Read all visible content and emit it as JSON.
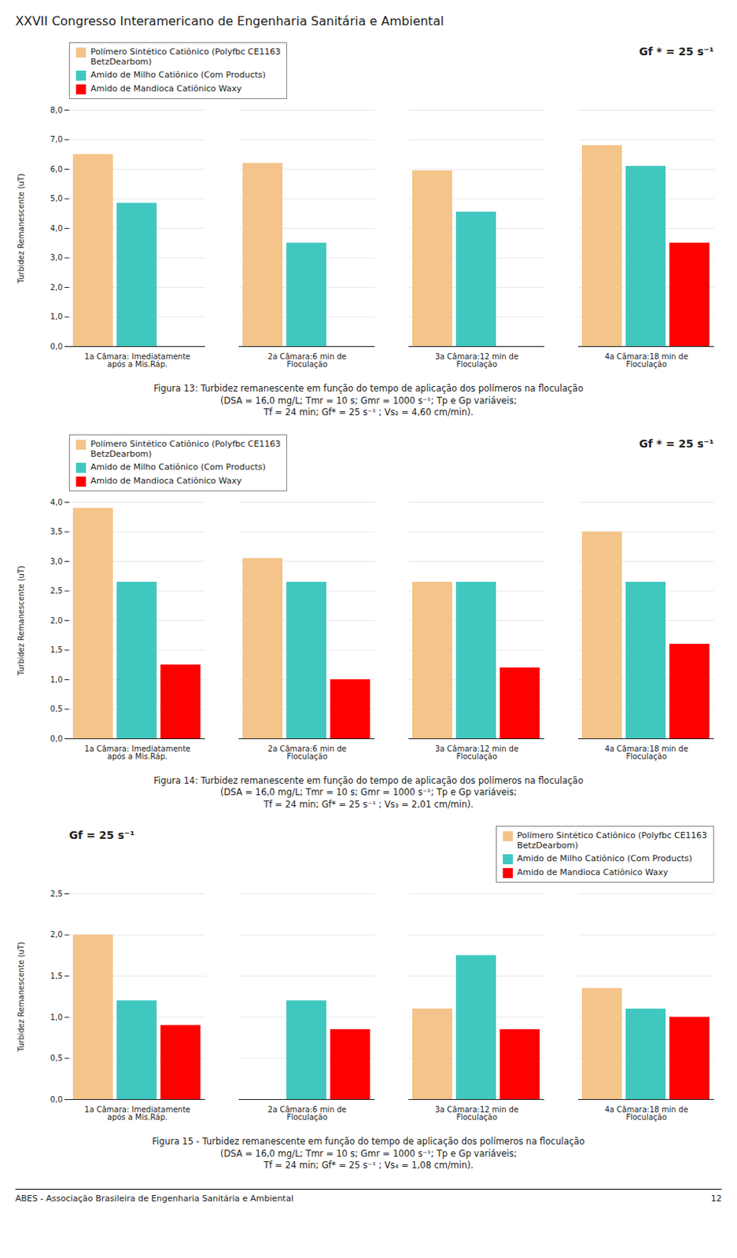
{
  "title": "XXVII Congresso Interamericano de Engenharia Sanitária e Ambiental",
  "annotations": [
    "ABES - Associação Brasileira de Engenharia Sanitária e Ambiental",
    "12"
  ],
  "chart_data": [
    {
      "type": "bar",
      "title": "Gf * = 25 s⁻¹",
      "caption": "Figura 13:  Turbidez remanescente em função do tempo de aplicação dos polímeros na floculação\n(DSA = 16,0 mg/L; Tmr = 10 s;  Gmr = 1000 s⁻¹; Tp e Gp variáveis;\nTf = 24 min; Gf* = 25 s⁻¹ ; Vs₂ = 4,60 cm/min).",
      "ylabel": "Turbidez Remanescente (uT)",
      "categories": [
        "1a Câmara: Imediatamente\napós a Mis.Ráp.",
        "2a Câmara:6 min de\nFloculação",
        "3a Câmara:12 min de\nFloculação",
        "4a Câmara:18 min de\nFloculação"
      ],
      "series": [
        {
          "name": "Polímero Sintético Catiônico (Polyfbc CE1163\nBetzDearbom)",
          "color": "#f4c48a",
          "values": [
            6.5,
            6.2,
            5.95,
            6.8
          ]
        },
        {
          "name": "Amido de Milho Catiônico (Com Products)",
          "color": "#40c8c0",
          "values": [
            4.85,
            3.5,
            4.55,
            6.1
          ]
        },
        {
          "name": "Amido de Mandioca Catiônico Waxy",
          "color": "#ff0000",
          "values": [
            0.0,
            0.0,
            0.0,
            3.5
          ]
        }
      ],
      "ylim": [
        0,
        8.0
      ],
      "yticks": [
        {
          "value": 0.0,
          "label": "0,0"
        },
        {
          "value": 1.0,
          "label": "1,0"
        },
        {
          "value": 2.0,
          "label": "2,0"
        },
        {
          "value": 3.0,
          "label": "3,0"
        },
        {
          "value": 4.0,
          "label": "4,0"
        },
        {
          "value": 5.0,
          "label": "5,0"
        },
        {
          "value": 6.0,
          "label": "6,0"
        },
        {
          "value": 7.0,
          "label": "7,0"
        },
        {
          "value": 8.0,
          "label": "8,0"
        }
      ],
      "grid": true,
      "legend": "upper left"
    },
    {
      "type": "bar",
      "title": "Gf * = 25 s⁻¹",
      "caption": "Figura 14: Turbidez remanescente em função do tempo de aplicação dos polímeros na floculação\n(DSA = 16,0 mg/L; Tmr = 10 s;  Gmr = 1000 s⁻¹; Tp e Gp variáveis;\nTf = 24 min; Gf* = 25 s⁻¹ ; Vs₃ = 2,01 cm/min).",
      "ylabel": "Turbidez Remanescente (uT)",
      "categories": [
        "1a Câmara: Imediatamente\napós a Mis.Ráp.",
        "2a Câmara:6 min de\nFloculação",
        "3a Câmara:12 min de\nFloculação",
        "4a Câmara:18 min de\nFloculação"
      ],
      "series": [
        {
          "name": "Polímero Sintético Catiônico (Polyfbc CE1163\nBetzDearbom)",
          "color": "#f4c48a",
          "values": [
            3.9,
            3.05,
            2.65,
            3.5
          ]
        },
        {
          "name": "Amido de Milho Catiônico (Com Products)",
          "color": "#40c8c0",
          "values": [
            2.65,
            2.65,
            2.65,
            2.65
          ]
        },
        {
          "name": "Amido de Mandioca Catiônico Waxy",
          "color": "#ff0000",
          "values": [
            1.25,
            1.0,
            1.2,
            1.6
          ]
        }
      ],
      "ylim": [
        0,
        4.0
      ],
      "yticks": [
        {
          "value": 0.0,
          "label": "0,0"
        },
        {
          "value": 0.5,
          "label": "0,5"
        },
        {
          "value": 1.0,
          "label": "1,0"
        },
        {
          "value": 1.5,
          "label": "1,5"
        },
        {
          "value": 2.0,
          "label": "2,0"
        },
        {
          "value": 2.5,
          "label": "2,5"
        },
        {
          "value": 3.0,
          "label": "3,0"
        },
        {
          "value": 3.5,
          "label": "3,5"
        },
        {
          "value": 4.0,
          "label": "4,0"
        }
      ],
      "grid": true,
      "legend": "upper left"
    },
    {
      "type": "bar",
      "title": "Gf =  25 s⁻¹",
      "caption": "Figura 15 - Turbidez remanescente em função do tempo de aplicação dos polímeros na floculação\n(DSA = 16,0 mg/L; Tmr = 10 s;  Gmr = 1000 s⁻¹; Tp e Gp variáveis;\nTf = 24 min; Gf* = 25 s⁻¹ ; Vs₄ = 1,08 cm/min).",
      "ylabel": "Turbidez Remanescente (uT)",
      "categories": [
        "1a Câmara: Imediatamente\napós a Mis.Ráp.",
        "2a Câmara:6 min de\nFloculação",
        "3a Câmara:12 min de\nFloculação",
        "4a Câmara:18 min de\nFloculação"
      ],
      "series": [
        {
          "name": "Polímero Sintético Catiônico (Polyfbc CE1163\nBetzDearbom)",
          "color": "#f4c48a",
          "values": [
            2.0,
            0.0,
            1.1,
            1.35
          ]
        },
        {
          "name": "Amido de Milho Catiônico (Com Products)",
          "color": "#40c8c0",
          "values": [
            1.2,
            1.2,
            1.75,
            1.1
          ]
        },
        {
          "name": "Amido de Mandioca Catiônico Waxy",
          "color": "#ff0000",
          "values": [
            0.9,
            0.85,
            0.85,
            1.0
          ]
        }
      ],
      "ylim": [
        0,
        2.5
      ],
      "yticks": [
        {
          "value": 0.0,
          "label": "0,0"
        },
        {
          "value": 0.5,
          "label": "0,5"
        },
        {
          "value": 1.0,
          "label": "1,0"
        },
        {
          "value": 1.5,
          "label": "1,5"
        },
        {
          "value": 2.0,
          "label": "2,0"
        },
        {
          "value": 2.5,
          "label": "2,5"
        }
      ],
      "grid": true,
      "legend": "upper right"
    }
  ]
}
